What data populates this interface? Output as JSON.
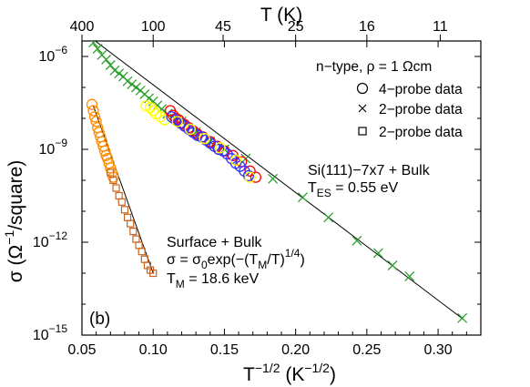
{
  "chart_data": {
    "type": "scatter",
    "xlabel": "T",
    "xlabel_exp": "−1/2",
    "xlabel_unit_pre": "(K",
    "xlabel_unit_exp": "−1/2",
    "xlabel_unit_post": ")",
    "x2label": "T (K)",
    "ylabel_pre": "σ (Ω",
    "ylabel_exp": "−1",
    "ylabel_post": "/square)",
    "xlim": [
      0.05,
      0.33
    ],
    "ylim_log10": [
      -15,
      -5.5
    ],
    "x_ticks": [
      0.05,
      0.1,
      0.15,
      0.2,
      0.25,
      0.3
    ],
    "x_ticklabels": [
      "0.05",
      "0.10",
      "0.15",
      "0.20",
      "0.25",
      "0.30"
    ],
    "y_ticks_log10": [
      -15,
      -12,
      -9,
      -6
    ],
    "y_ticklabel_base": "10",
    "y_ticklabel_exps": [
      "−15",
      "−12",
      "−9",
      "−6"
    ],
    "top_ticks_T": [
      400,
      100,
      45,
      25,
      16,
      11
    ],
    "top_ticklabels": [
      "400",
      "100",
      "45",
      "25",
      "16",
      "11"
    ],
    "legend": {
      "placement": "top-right",
      "title_parts": [
        "n−type, ρ = 1 Ωcm"
      ],
      "entries": [
        {
          "marker": "circle",
          "label": "4−probe data"
        },
        {
          "marker": "x",
          "label": "2−probe data"
        },
        {
          "marker": "square",
          "label": "2−probe data"
        }
      ]
    },
    "panel_label": "(b)",
    "annotations": {
      "si_line1": "Si(111)−7x7 + Bulk",
      "si_line2_pre": "T",
      "si_line2_sub": "ES",
      "si_line2_post": " = 0.55 eV",
      "surf_line1": "Surface + Bulk",
      "surf_line2_a": "σ = σ",
      "surf_line2_sub0": "0",
      "surf_line2_b": "exp(−(T",
      "surf_line2_subM": "M",
      "surf_line2_c": "/T)",
      "surf_line2_sup": "1/4",
      "surf_line2_d": ")",
      "surf_line3_pre": "T",
      "surf_line3_sub": "M",
      "surf_line3_post": " = 18.6 keV"
    },
    "fit_lines": [
      {
        "name": "Si(111)−7x7 + Bulk",
        "x": [
          0.055,
          0.318
        ],
        "log10_y": [
          -5.35,
          -14.5
        ],
        "color": "#000000"
      },
      {
        "name": "Surface + Bulk",
        "x": [
          0.058,
          0.1
        ],
        "log10_y": [
          -7.6,
          -13.0
        ],
        "color": "#000000"
      }
    ],
    "series": [
      {
        "marker": "x",
        "color": "#2ca02c",
        "x": [
          0.058,
          0.061,
          0.064,
          0.067,
          0.07,
          0.073,
          0.076,
          0.079,
          0.082,
          0.085,
          0.088,
          0.091,
          0.094,
          0.097,
          0.1,
          0.103,
          0.106,
          0.11,
          0.115,
          0.12,
          0.13,
          0.14,
          0.15,
          0.165,
          0.184,
          0.205,
          0.223,
          0.243,
          0.258,
          0.268,
          0.28,
          0.317
        ],
        "log10_y": [
          -5.55,
          -5.75,
          -5.95,
          -6.1,
          -6.28,
          -6.45,
          -6.55,
          -6.65,
          -6.8,
          -6.9,
          -7.0,
          -7.1,
          -7.22,
          -7.35,
          -7.45,
          -7.58,
          -7.7,
          -7.85,
          -8.0,
          -8.1,
          -8.45,
          -8.75,
          -9.0,
          -9.3,
          -9.95,
          -10.55,
          -11.2,
          -11.95,
          -12.35,
          -12.75,
          -13.1,
          -14.45
        ]
      },
      {
        "marker": "circle",
        "color": "#ffff00",
        "x": [
          0.095,
          0.098,
          0.1,
          0.102,
          0.105,
          0.108
        ],
        "log10_y": [
          -7.6,
          -7.65,
          -7.75,
          -7.85,
          -7.95,
          -8.05
        ]
      },
      {
        "marker": "circle",
        "color": "#ff0000",
        "x": [
          0.112,
          0.114,
          0.116,
          0.118,
          0.12,
          0.122,
          0.125,
          0.128,
          0.131,
          0.135,
          0.14,
          0.145,
          0.15,
          0.156,
          0.162,
          0.168,
          0.172
        ],
        "log10_y": [
          -7.75,
          -7.9,
          -8.0,
          -8.05,
          -8.15,
          -8.2,
          -8.3,
          -8.4,
          -8.5,
          -8.6,
          -8.75,
          -8.9,
          -9.05,
          -9.2,
          -9.4,
          -9.7,
          -9.9
        ]
      },
      {
        "marker": "circle",
        "color": "#3333ff",
        "x": [
          0.113,
          0.116,
          0.119,
          0.122,
          0.125,
          0.128,
          0.131,
          0.134,
          0.137,
          0.14,
          0.143,
          0.146,
          0.149,
          0.152,
          0.155,
          0.158,
          0.161,
          0.164,
          0.167
        ],
        "log10_y": [
          -7.95,
          -8.05,
          -8.15,
          -8.25,
          -8.35,
          -8.45,
          -8.55,
          -8.6,
          -8.7,
          -8.8,
          -8.9,
          -9.0,
          -9.05,
          -9.15,
          -9.3,
          -9.45,
          -9.55,
          -9.7,
          -9.85
        ]
      },
      {
        "marker": "circle",
        "color": "#ffff00",
        "x": [
          0.117,
          0.126,
          0.136,
          0.147,
          0.158,
          0.168
        ],
        "log10_y": [
          -8.1,
          -8.35,
          -8.65,
          -8.95,
          -9.35,
          -9.9
        ]
      },
      {
        "marker": "circle",
        "color": "#ff8c00",
        "x": [
          0.057,
          0.058,
          0.059,
          0.06,
          0.061,
          0.062,
          0.063,
          0.064,
          0.065,
          0.066,
          0.067,
          0.068,
          0.069,
          0.07,
          0.071,
          0.072
        ],
        "log10_y": [
          -7.55,
          -7.75,
          -7.95,
          -8.1,
          -8.3,
          -8.45,
          -8.6,
          -8.75,
          -8.9,
          -9.05,
          -9.2,
          -9.3,
          -9.45,
          -9.6,
          -9.75,
          -9.9
        ]
      },
      {
        "marker": "square",
        "color": "#c8641e",
        "x": [
          0.07,
          0.072,
          0.074,
          0.076,
          0.078,
          0.08,
          0.082,
          0.084,
          0.086,
          0.088,
          0.09,
          0.092,
          0.094,
          0.096,
          0.098,
          0.1
        ],
        "log10_y": [
          -9.75,
          -10.0,
          -10.25,
          -10.5,
          -10.7,
          -10.95,
          -11.2,
          -11.4,
          -11.65,
          -11.9,
          -12.1,
          -12.3,
          -12.55,
          -12.75,
          -12.9,
          -13.0
        ]
      }
    ]
  }
}
